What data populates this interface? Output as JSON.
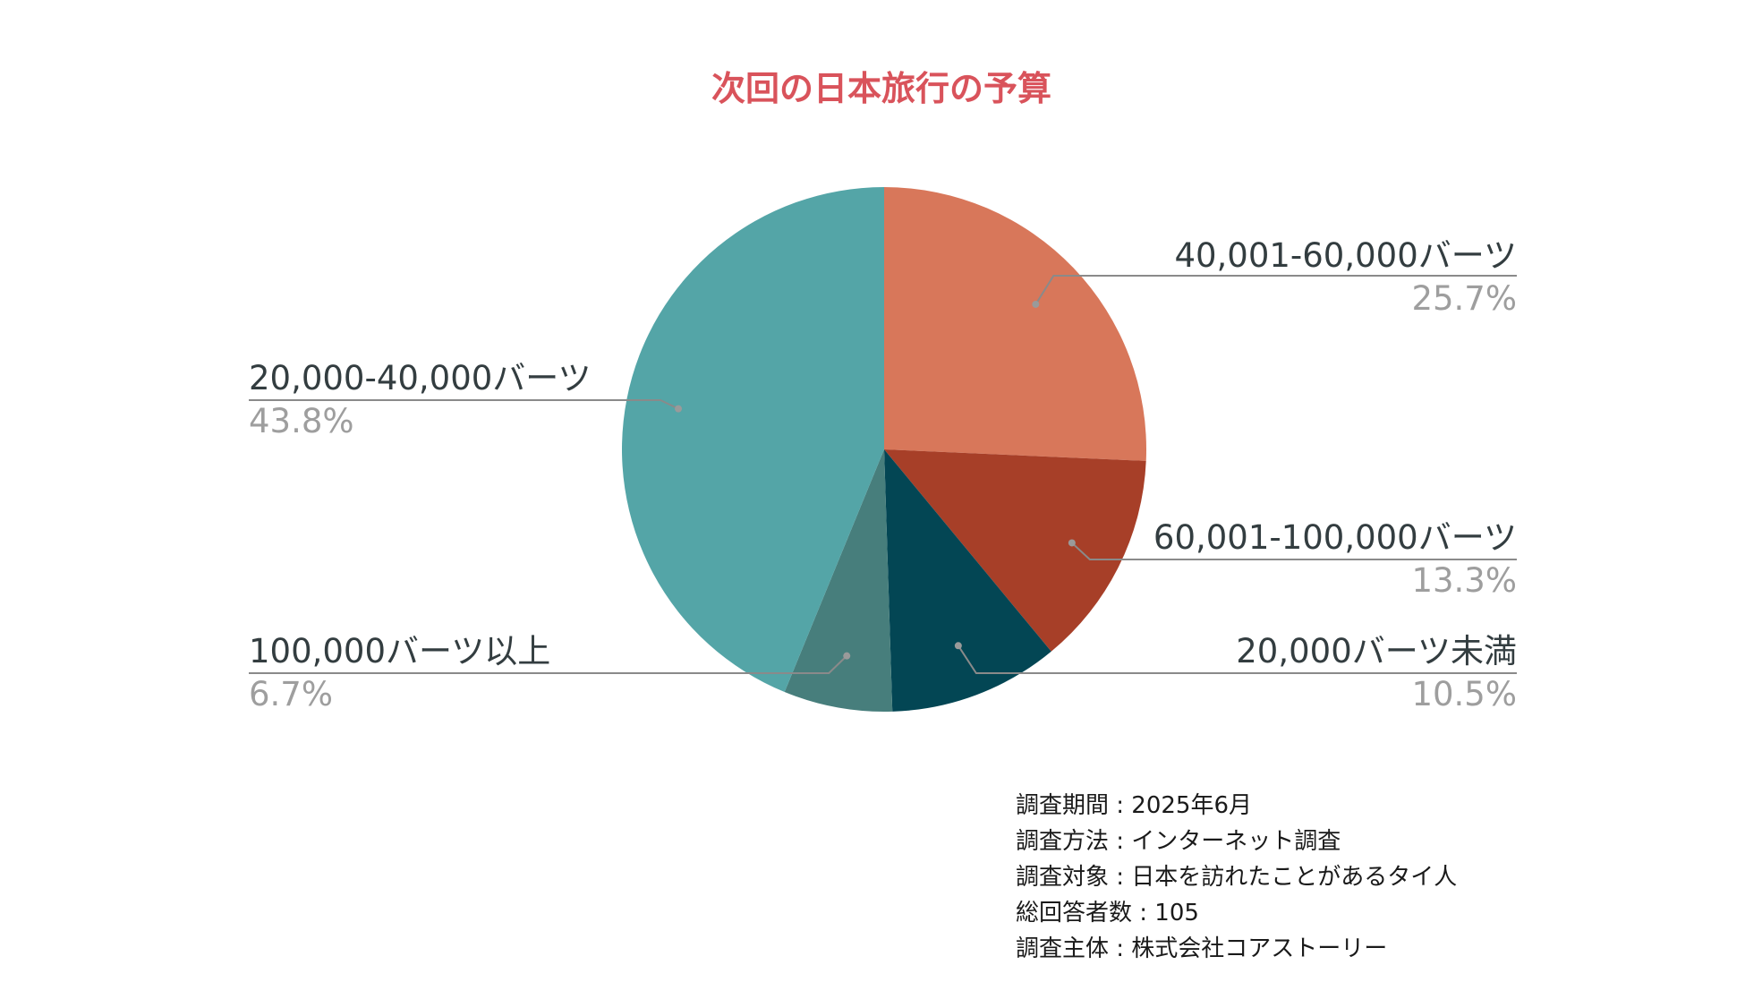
{
  "chart_data": {
    "type": "pie",
    "title": "次回の日本旅行の予算",
    "title_color": "#d9535b",
    "start_angle_deg": 0,
    "direction": "clockwise",
    "slices": [
      {
        "label": "40,001-60,000バーツ",
        "value": 25.7,
        "value_label": "25.7%",
        "color": "#d8775a"
      },
      {
        "label": "60,001-100,000バーツ",
        "value": 13.3,
        "value_label": "13.3%",
        "color": "#a73f28"
      },
      {
        "label": "20,000バーツ未満",
        "value": 10.5,
        "value_label": "10.5%",
        "color": "#034654"
      },
      {
        "label": "100,000バーツ以上",
        "value": 6.7,
        "value_label": "6.7%",
        "color": "#477e7c"
      },
      {
        "label": "20,000-40,000バーツ",
        "value": 43.8,
        "value_label": "43.8%",
        "color": "#54a5a7"
      }
    ]
  },
  "footnote": {
    "lines": [
      "調査期間 : 2025年6月",
      "調査方法 :  インターネット調査",
      "調査対象 : 日本を訪れたことがあるタイ人",
      "総回答者数 : 105",
      "調査主体 : 株式会社コアストーリー"
    ]
  }
}
